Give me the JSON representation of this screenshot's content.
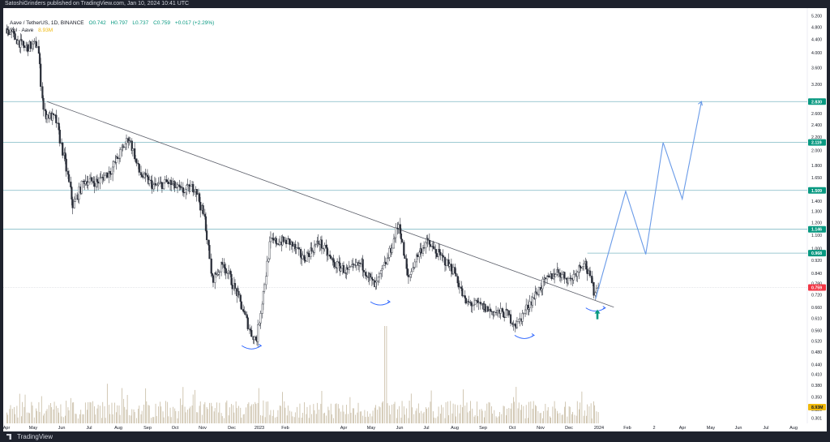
{
  "header": {
    "published_by": "SatoshiGrinders published on TradingView.com, Jan 10, 2024 10:41 UTC"
  },
  "legend": {
    "symbol": "Aave / TetherUS, 1D, BINANCE",
    "open": "O0.742",
    "high": "H0.797",
    "low": "L0.737",
    "close": "C0.759",
    "change": "+0.017 (+2.29%)",
    "volume_label": "Vol · Aave",
    "volume_value": "8.93M"
  },
  "footer": {
    "brand": "TradingView"
  },
  "colors": {
    "up": "#089981",
    "down": "#f23645",
    "candle": "#2a2e39",
    "level_line": "#7fb8c4",
    "trendline": "#5d606b",
    "projection": "#6a9be8",
    "arc": "#2962ff",
    "volume": "#b8a98a",
    "axis_label_bg": "#089981",
    "price_label_bg": "#f23645",
    "volume_label_bg": "#f0b90b"
  },
  "chart_data": {
    "type": "line",
    "symbol": "AAVE/USDT",
    "timeframe": "1D",
    "scale": "log",
    "ylim": [
      0.29,
      5.3
    ],
    "y_ticks": [
      "5.200",
      "4.800",
      "4.400",
      "4.000",
      "3.600",
      "3.200",
      "2.800",
      "2.600",
      "2.400",
      "2.200",
      "2.000",
      "1.800",
      "1.650",
      "1.500",
      "1.400",
      "1.300",
      "1.200",
      "1.100",
      "1.000",
      "0.920",
      "0.840",
      "0.780",
      "0.720",
      "0.660",
      "0.610",
      "0.560",
      "0.520",
      "0.480",
      "0.440",
      "0.410",
      "0.380",
      "0.350",
      "0.320",
      "0.301"
    ],
    "x_ticks": [
      "Apr",
      "May",
      "Jun",
      "Jul",
      "Aug",
      "Sep",
      "Oct",
      "Nov",
      "Dec",
      "2023",
      "Feb",
      "Apr",
      "May",
      "Jun",
      "Jul",
      "Aug",
      "Sep",
      "Oct",
      "Nov",
      "Dec",
      "2024",
      "Feb",
      "2",
      "Apr",
      "May",
      "Jun",
      "Jul",
      "Aug"
    ],
    "price_series": {
      "name": "",
      "x": [
        "2022-04-01",
        "2022-04-20",
        "2022-05-05",
        "2022-05-12",
        "2022-05-25",
        "2022-06-05",
        "2022-06-13",
        "2022-06-25",
        "2022-07-10",
        "2022-07-25",
        "2022-08-13",
        "2022-08-25",
        "2022-09-10",
        "2022-09-25",
        "2022-10-10",
        "2022-10-25",
        "2022-11-05",
        "2022-11-12",
        "2022-11-25",
        "2022-12-10",
        "2022-12-25",
        "2022-12-31",
        "2023-01-15",
        "2023-02-05",
        "2023-02-20",
        "2023-03-10",
        "2023-03-25",
        "2023-04-10",
        "2023-04-25",
        "2023-05-10",
        "2023-05-25",
        "2023-06-05",
        "2023-06-15",
        "2023-06-25",
        "2023-07-05",
        "2023-07-20",
        "2023-08-05",
        "2023-08-17",
        "2023-09-01",
        "2023-09-15",
        "2023-10-01",
        "2023-10-12",
        "2023-10-25",
        "2023-11-10",
        "2023-11-25",
        "2023-12-10",
        "2023-12-25",
        "2024-01-05",
        "2024-01-10"
      ],
      "y": [
        4.75,
        4.15,
        4.25,
        2.6,
        2.5,
        1.8,
        1.35,
        1.62,
        1.6,
        1.75,
        2.2,
        1.7,
        1.55,
        1.6,
        1.5,
        1.55,
        1.2,
        0.8,
        0.9,
        0.72,
        0.55,
        0.52,
        1.05,
        1.05,
        0.93,
        1.05,
        0.9,
        0.85,
        0.9,
        0.76,
        0.95,
        1.2,
        0.8,
        0.95,
        1.05,
        0.95,
        0.85,
        0.68,
        0.67,
        0.64,
        0.63,
        0.58,
        0.67,
        0.78,
        0.85,
        0.8,
        0.92,
        0.74,
        0.759
      ]
    },
    "horizontal_levels": [
      "2.830",
      "2.119",
      "1.509",
      "1.146",
      "0.968",
      "0.759"
    ],
    "trendline": {
      "x": [
        "2022-05-15",
        "2024-01-26"
      ],
      "y": [
        2.83,
        0.66
      ]
    },
    "projection": {
      "name": "",
      "x": [
        "2024-01-06",
        "2024-02-08",
        "2024-03-01",
        "2024-03-20",
        "2024-04-10",
        "2024-05-01"
      ],
      "y": [
        0.7,
        1.5,
        0.96,
        2.119,
        1.42,
        2.83
      ]
    },
    "arcs_at": [
      "2022-12-25",
      "2023-05-15",
      "2023-10-20",
      "2024-01-06"
    ],
    "volume_label": "8.93M"
  }
}
